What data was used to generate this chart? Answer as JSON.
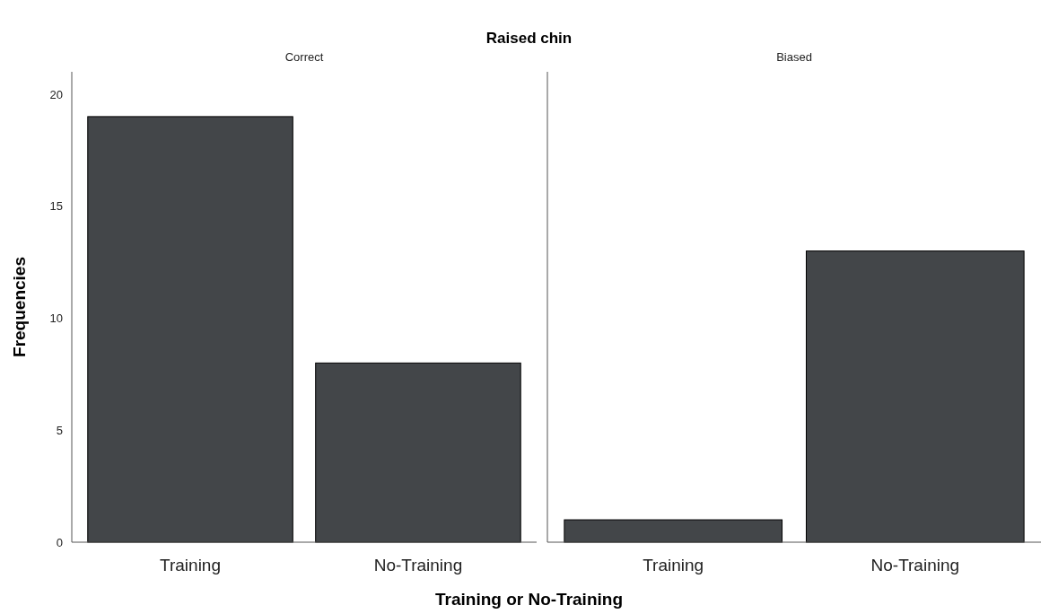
{
  "chart_data": [
    {
      "type": "bar",
      "title": "Raised chin",
      "subtitle": "Correct",
      "xlabel": "Training or No-Training",
      "ylabel": "Frequencies",
      "categories": [
        "Training",
        "No-Training"
      ],
      "values": [
        19,
        8
      ],
      "color": "#434649",
      "ylim": [
        0,
        21
      ],
      "yticks": [
        0,
        5,
        10,
        15,
        20
      ]
    },
    {
      "type": "bar",
      "subtitle": "Biased",
      "categories": [
        "Training",
        "No-Training"
      ],
      "values": [
        1,
        13
      ],
      "color": "#434649",
      "ylim": [
        0,
        21
      ],
      "tick_labels": "x"
    }
  ]
}
